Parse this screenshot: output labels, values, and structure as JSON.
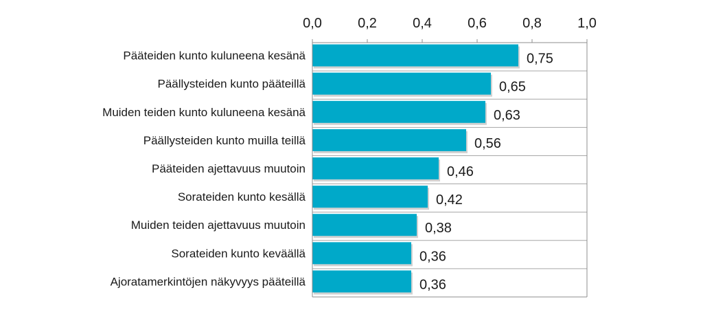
{
  "chart_data": {
    "type": "bar",
    "orientation": "horizontal",
    "title": "",
    "xlabel": "",
    "ylabel": "",
    "xlim": [
      0,
      1.0
    ],
    "ticks": [
      {
        "value": 0.0,
        "label": "0,0"
      },
      {
        "value": 0.2,
        "label": "0,2"
      },
      {
        "value": 0.4,
        "label": "0,4"
      },
      {
        "value": 0.6,
        "label": "0,6"
      },
      {
        "value": 0.8,
        "label": "0,8"
      },
      {
        "value": 1.0,
        "label": "1,0"
      }
    ],
    "x_axis_position": "top",
    "grid": "horizontal separators between categories",
    "legend": "none",
    "bar_color": "#00A9C9",
    "categories": [
      "Pääteiden kunto kuluneena kesänä",
      "Päällysteiden kunto pääteillä",
      "Muiden teiden kunto kuluneena kesänä",
      "Päällysteiden kunto muilla  teillä",
      "Pääteiden ajettavuus muutoin",
      "Sorateiden kunto kesällä",
      "Muiden teiden ajettavuus muutoin",
      "Sorateiden kunto keväällä",
      "Ajoratamerkintöjen näkyvyys pääteillä"
    ],
    "values": [
      0.75,
      0.65,
      0.63,
      0.56,
      0.46,
      0.42,
      0.38,
      0.36,
      0.36
    ],
    "value_labels": [
      "0,75",
      "0,65",
      "0,63",
      "0,56",
      "0,46",
      "0,42",
      "0,38",
      "0,36",
      "0,36"
    ]
  }
}
